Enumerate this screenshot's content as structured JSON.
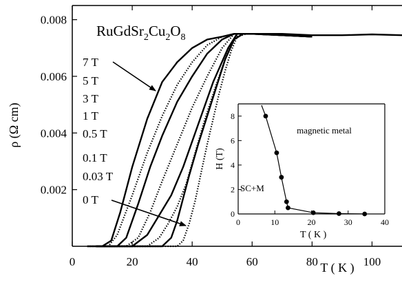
{
  "chart_data": [
    {
      "type": "line",
      "title": "",
      "xlabel": "T ( K )",
      "ylabel": "ρ  (Ω cm)",
      "xlim": [
        0,
        110
      ],
      "ylim": [
        0,
        0.0085
      ],
      "xticks": [
        0,
        20,
        40,
        60,
        80,
        100
      ],
      "yticks": [
        0.002,
        0.004,
        0.006,
        0.008
      ],
      "ytick_labels": [
        "0.002",
        "0.004",
        "0.006",
        "0.008"
      ],
      "grid": false,
      "legend": "none",
      "series_labels": [
        "7 T",
        "5 T",
        "3 T",
        "1 T",
        "0.5 T",
        "0.1 T",
        "0.03 T",
        "0 T"
      ],
      "series": [
        {
          "name": "7 T",
          "x": [
            5,
            10,
            13,
            16,
            20,
            25,
            30,
            35,
            40,
            45,
            50,
            54,
            60,
            70,
            80,
            90,
            100,
            110
          ],
          "y": [
            0,
            0,
            0.0002,
            0.0012,
            0.0028,
            0.0045,
            0.0058,
            0.0065,
            0.007,
            0.0073,
            0.0074,
            0.0075,
            0.0075,
            0.0075,
            0.00745,
            0.00745,
            0.00748,
            0.00745
          ]
        },
        {
          "name": "5 T",
          "x": [
            5,
            12,
            15,
            20,
            25,
            30,
            35,
            40,
            45,
            50,
            54,
            60,
            70,
            80
          ],
          "y": [
            0,
            0,
            0.0004,
            0.0018,
            0.0033,
            0.0046,
            0.0057,
            0.0065,
            0.0071,
            0.0074,
            0.0075,
            0.0075,
            0.00745,
            0.0074
          ]
        },
        {
          "name": "3 T",
          "x": [
            8,
            15,
            18,
            22,
            26,
            30,
            35,
            40,
            45,
            50,
            54,
            60,
            70,
            80
          ],
          "y": [
            0,
            0,
            0.0003,
            0.0015,
            0.0028,
            0.0039,
            0.0051,
            0.006,
            0.0068,
            0.0073,
            0.0075,
            0.0075,
            0.00745,
            0.0074
          ]
        },
        {
          "name": "1 T",
          "x": [
            8,
            18,
            22,
            26,
            30,
            35,
            40,
            45,
            50,
            54,
            60,
            70,
            80
          ],
          "y": [
            0,
            0,
            0.0003,
            0.0012,
            0.0023,
            0.0036,
            0.0049,
            0.006,
            0.007,
            0.0075,
            0.0075,
            0.00745,
            0.0074
          ]
        },
        {
          "name": "0.5 T",
          "x": [
            8,
            20,
            25,
            29,
            33,
            37,
            42,
            47,
            52,
            55,
            60,
            70,
            80
          ],
          "y": [
            0,
            0,
            0.0004,
            0.0011,
            0.0018,
            0.0028,
            0.0043,
            0.0058,
            0.007,
            0.0075,
            0.0075,
            0.00745,
            0.0074
          ]
        },
        {
          "name": "0.1 T",
          "x": [
            8,
            25,
            29,
            32,
            35,
            38,
            41,
            44,
            48,
            52,
            55,
            60,
            70,
            80
          ],
          "y": [
            0,
            0,
            0.0003,
            0.0008,
            0.0014,
            0.0022,
            0.0033,
            0.0044,
            0.0057,
            0.0069,
            0.0075,
            0.0075,
            0.00745,
            0.0074
          ]
        },
        {
          "name": "0.03 T",
          "x": [
            8,
            30,
            33,
            35,
            37,
            39,
            42,
            45,
            48,
            51,
            54,
            57,
            62,
            70,
            80
          ],
          "y": [
            0,
            0,
            0.0003,
            0.0009,
            0.0017,
            0.0025,
            0.0036,
            0.0046,
            0.0056,
            0.0066,
            0.0073,
            0.0075,
            0.0075,
            0.00745,
            0.0074
          ]
        },
        {
          "name": "0 T",
          "x": [
            8,
            35,
            37,
            39,
            41,
            43,
            45,
            47,
            49,
            51,
            53,
            55,
            58,
            62,
            70,
            80
          ],
          "y": [
            0,
            0,
            0.0002,
            0.0008,
            0.0016,
            0.0026,
            0.0036,
            0.0045,
            0.0054,
            0.0062,
            0.0069,
            0.0074,
            0.0075,
            0.0075,
            0.00745,
            0.0074
          ]
        }
      ],
      "annotations": {
        "compound": "RuGdSr",
        "compound_sub1": "2",
        "compound_mid": "Cu",
        "compound_sub2": "2",
        "compound_end": "O",
        "compound_sub3": "8"
      }
    },
    {
      "type": "scatter",
      "title": "",
      "xlabel": "T ( K )",
      "ylabel": "H  (T)",
      "xlim": [
        0,
        40
      ],
      "ylim": [
        0,
        9
      ],
      "xticks": [
        0,
        10,
        20,
        30,
        40
      ],
      "yticks": [
        0,
        2,
        4,
        6,
        8
      ],
      "grid": false,
      "legend": "none",
      "series": [
        {
          "x": [
            7.5,
            10.5,
            11.8,
            13.2,
            13.6,
            20.5,
            27.5,
            34.5
          ],
          "y": [
            8,
            5,
            3,
            1,
            0.5,
            0.1,
            0.03,
            0
          ]
        }
      ],
      "annotations": {
        "region_high": "magnetic metal",
        "region_low": "SC+M"
      }
    }
  ]
}
